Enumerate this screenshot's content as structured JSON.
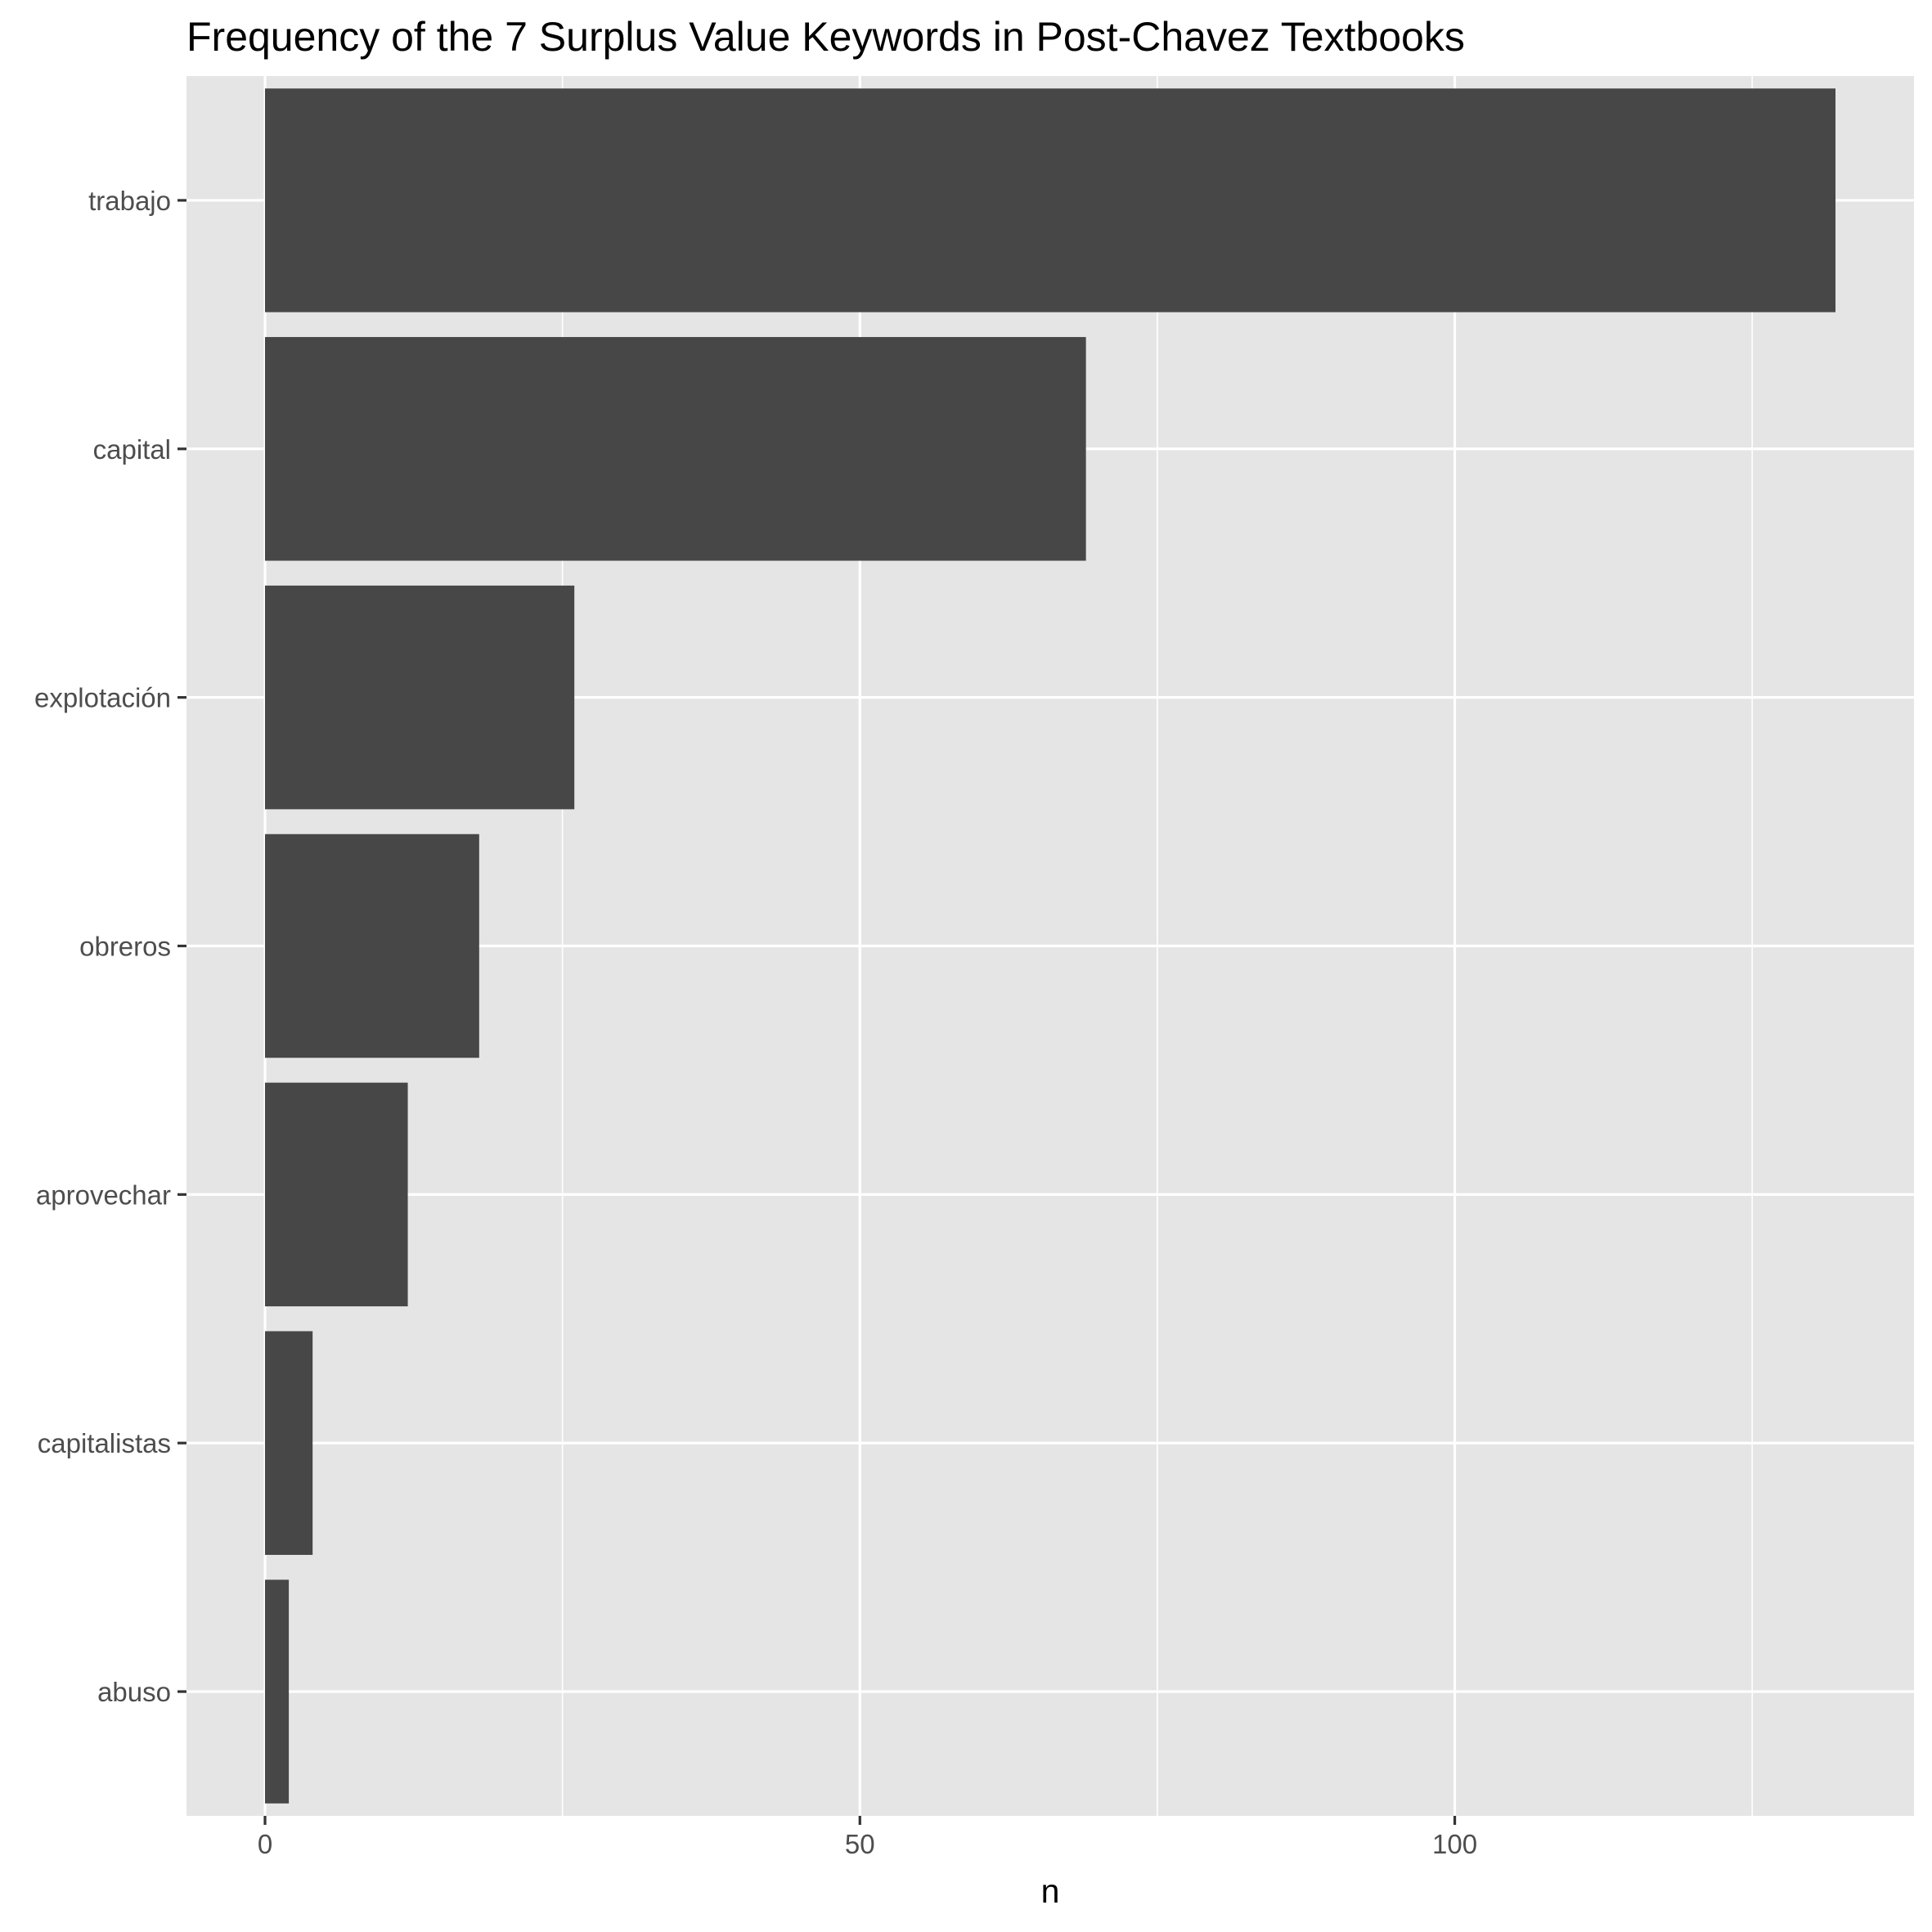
{
  "chart_data": {
    "type": "bar",
    "orientation": "horizontal",
    "title": "Frequency of the 7 Surplus Value Keywords in Post-Chavez Textbooks",
    "xlabel": "n",
    "ylabel": "",
    "categories": [
      "trabajo",
      "capital",
      "explotación",
      "obreros",
      "aprovechar",
      "capitalistas",
      "abuso"
    ],
    "values": [
      132,
      69,
      26,
      18,
      12,
      4,
      2
    ],
    "xlim": [
      -6.6,
      138.6
    ],
    "x_ticks": [
      0,
      50,
      100
    ],
    "x_tick_labels": [
      "0",
      "50",
      "100"
    ],
    "x_minor_ticks": [
      25,
      75,
      125
    ],
    "grid": true,
    "legend": "none",
    "colors": {
      "bar": "#474747",
      "panel": "#e5e5e5",
      "grid": "#ffffff",
      "tick": "#333333"
    }
  }
}
